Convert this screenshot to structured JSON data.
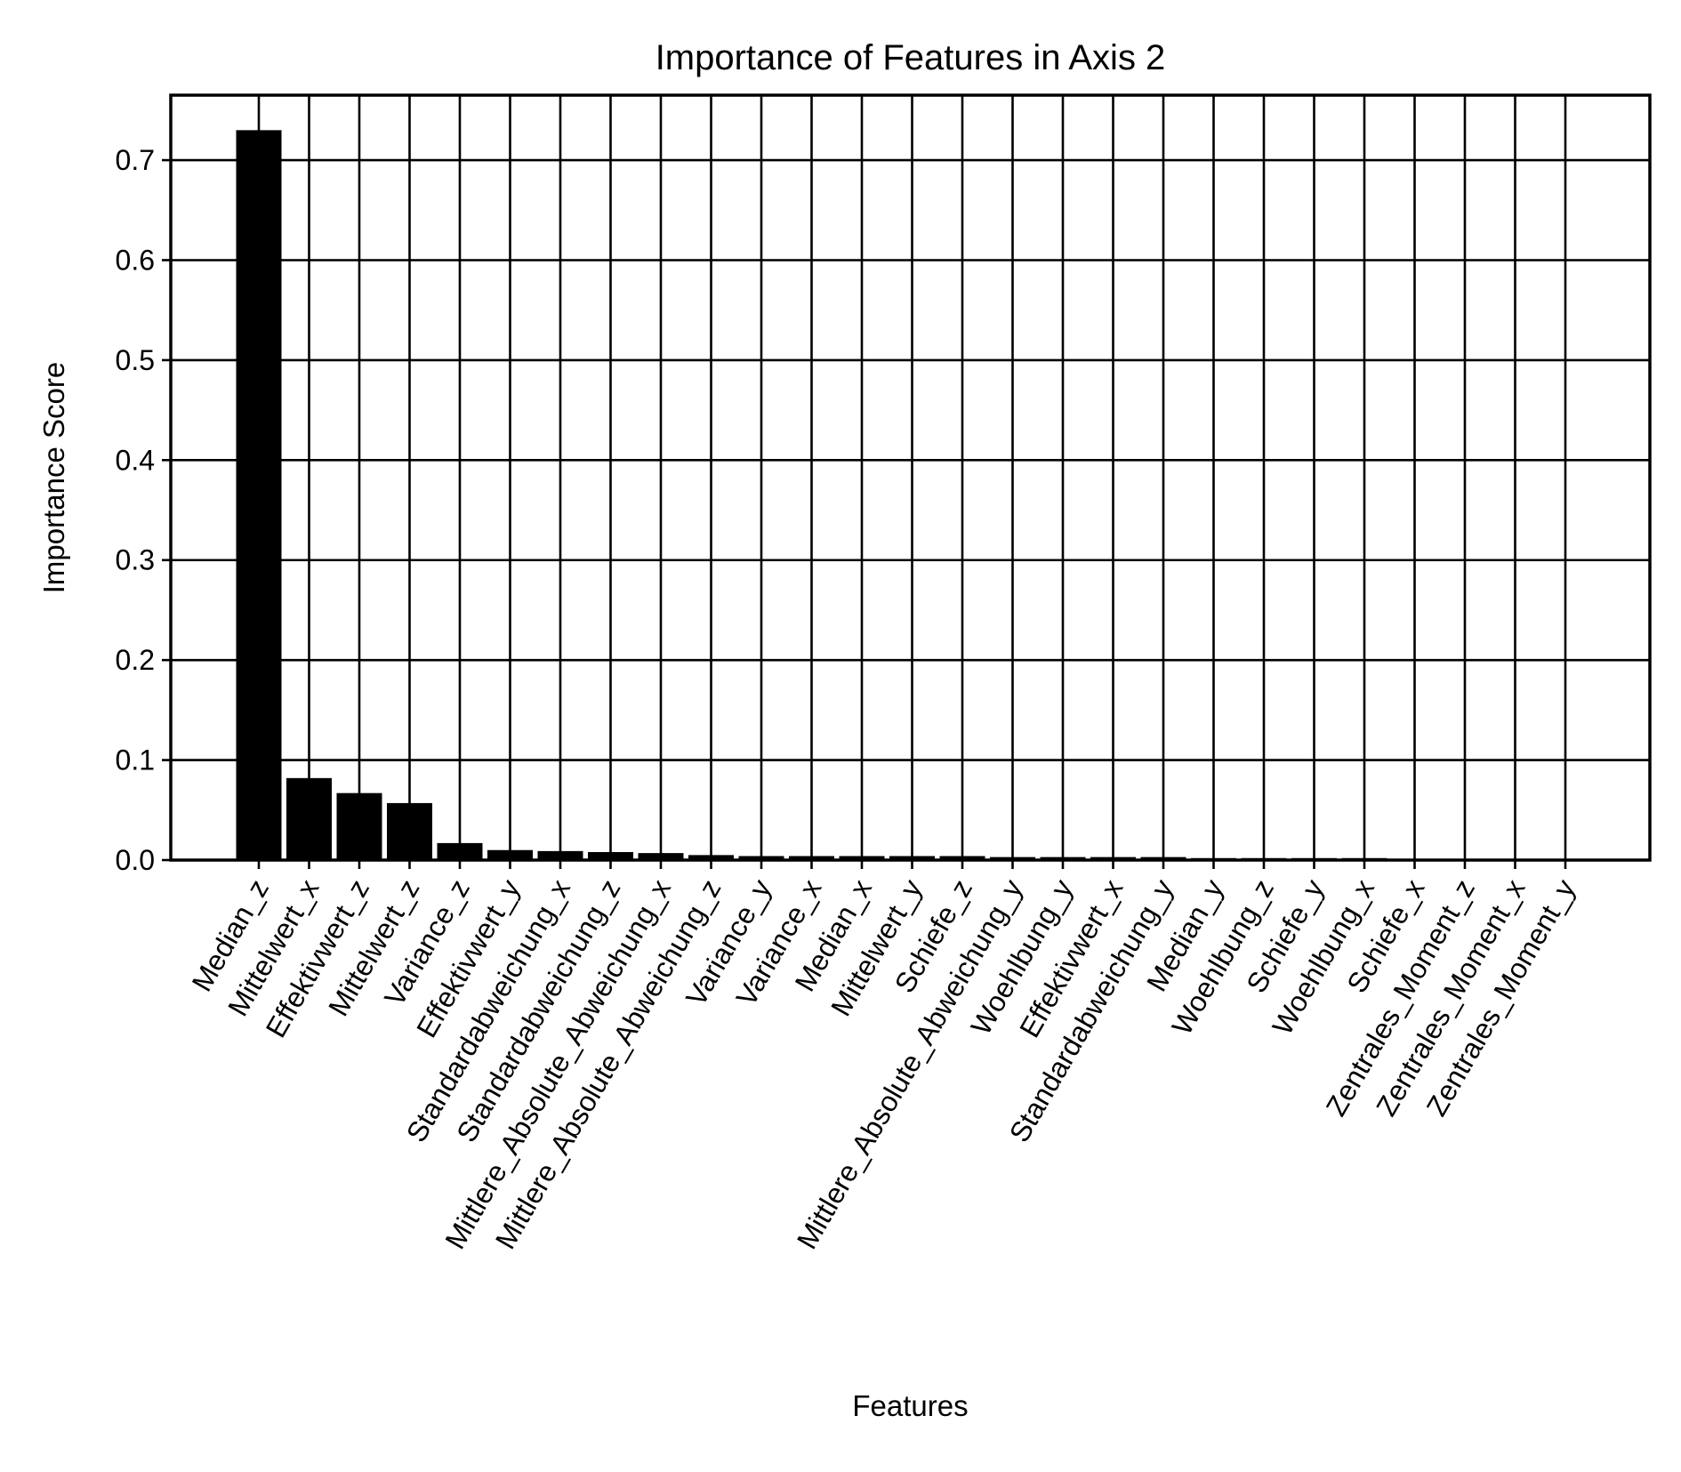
{
  "chart_data": {
    "type": "bar",
    "title": "Importance of Features in Axis 2",
    "xlabel": "Features",
    "ylabel": "Importance Score",
    "ylim": [
      0,
      0.765
    ],
    "yticks": [
      {
        "value": 0.0,
        "label": "0.0"
      },
      {
        "value": 0.1,
        "label": "0.1"
      },
      {
        "value": 0.2,
        "label": "0.2"
      },
      {
        "value": 0.3,
        "label": "0.3"
      },
      {
        "value": 0.4,
        "label": "0.4"
      },
      {
        "value": 0.5,
        "label": "0.5"
      },
      {
        "value": 0.6,
        "label": "0.6"
      },
      {
        "value": 0.7,
        "label": "0.7"
      }
    ],
    "grid": true,
    "bar_color": "#000000",
    "categories": [
      "Median_z",
      "Mittelwert_x",
      "Effektivwert_z",
      "Mittelwert_z",
      "Variance_z",
      "Effektivwert_y",
      "Standardabweichung_x",
      "Standardabweichung_z",
      "Mittlere_Absolute_Abweichung_x",
      "Mittlere_Absolute_Abweichung_z",
      "Variance_y",
      "Variance_x",
      "Median_x",
      "Mittelwert_y",
      "Schiefe_z",
      "Mittlere_Absolute_Abweichung_y",
      "Woehlbung_y",
      "Effektivwert_x",
      "Standardabweichung_y",
      "Median_y",
      "Woehlbung_z",
      "Schiefe_y",
      "Woehlbung_x",
      "Schiefe_x",
      "Zentrales_Moment_z",
      "Zentrales_Moment_x",
      "Zentrales_Moment_y"
    ],
    "values": [
      0.73,
      0.082,
      0.067,
      0.057,
      0.017,
      0.01,
      0.009,
      0.008,
      0.007,
      0.005,
      0.004,
      0.004,
      0.004,
      0.004,
      0.004,
      0.003,
      0.003,
      0.003,
      0.003,
      0.002,
      0.002,
      0.002,
      0.002,
      0.001,
      0.001,
      0.001,
      0.001
    ]
  }
}
